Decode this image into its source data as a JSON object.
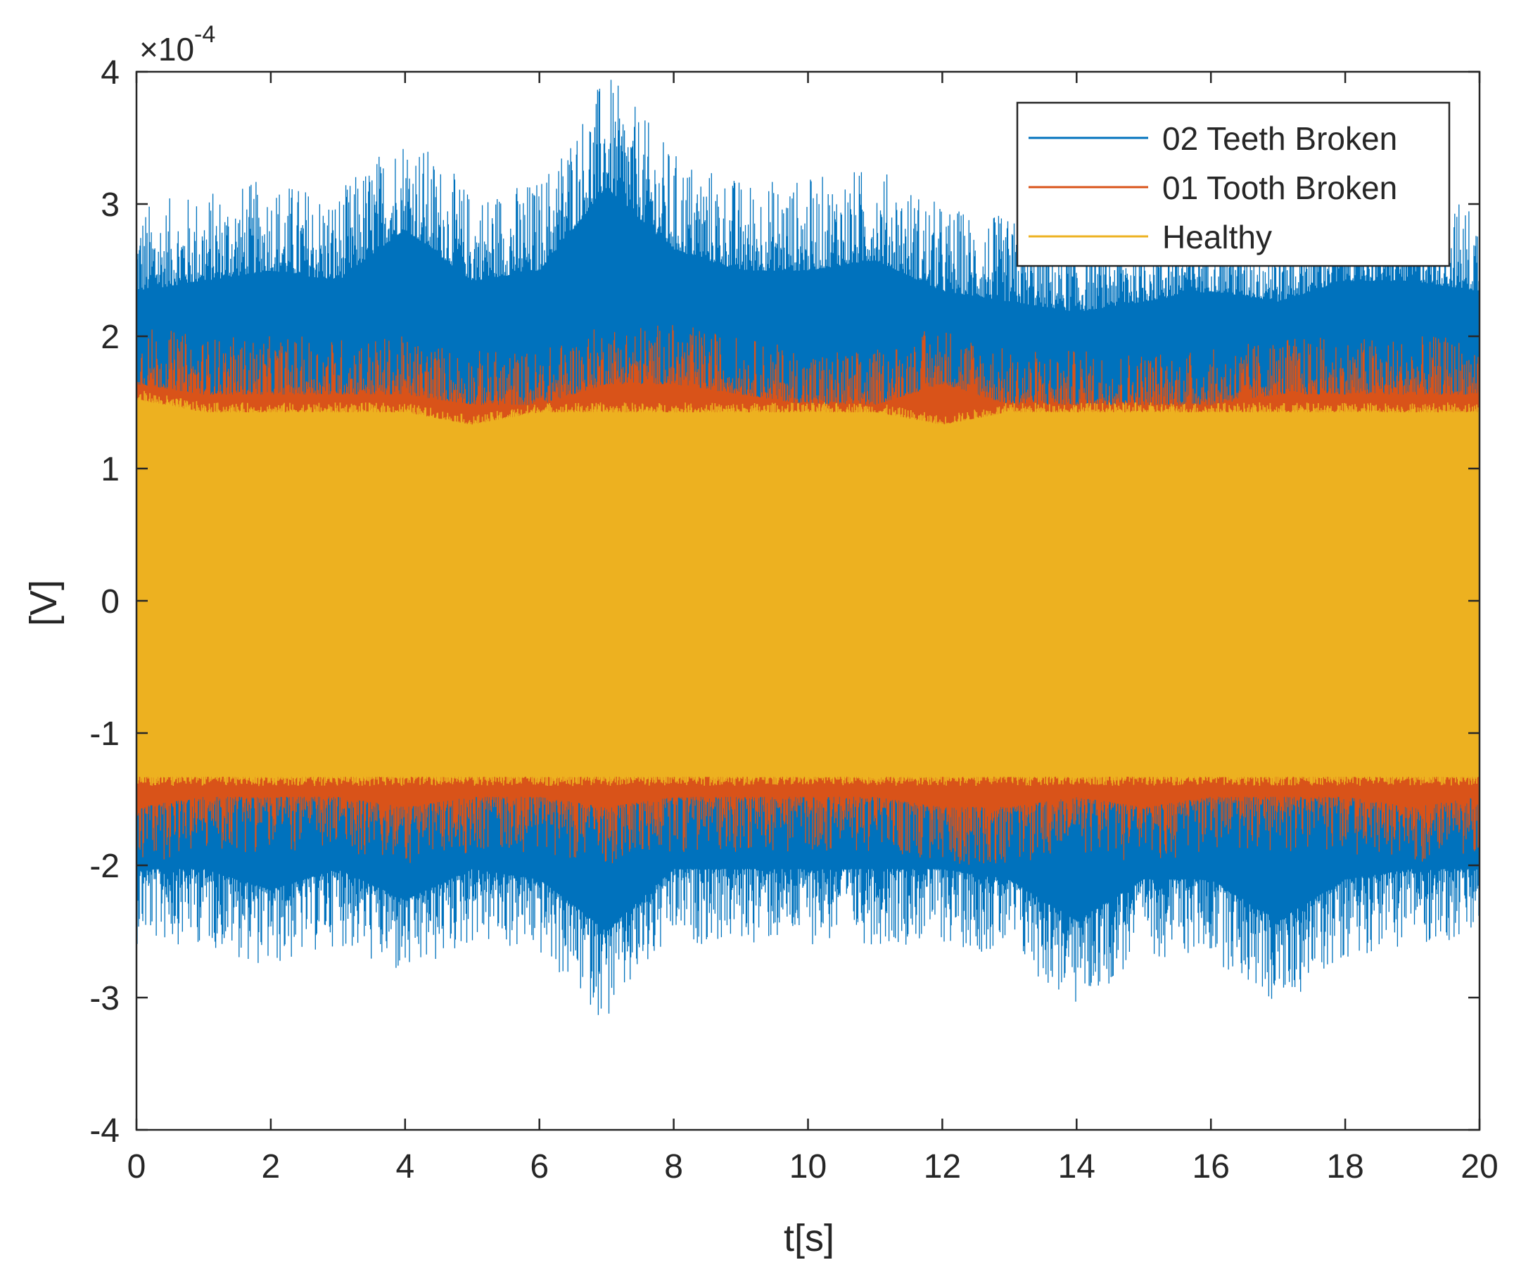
{
  "chart_data": {
    "type": "line",
    "xlabel": "t[s]",
    "ylabel": "[V]",
    "y_exponent_label": "×10",
    "y_exponent_power": "-4",
    "xlim": [
      0,
      20
    ],
    "ylim": [
      -4,
      4
    ],
    "x_ticks": [
      "0",
      "2",
      "4",
      "6",
      "8",
      "10",
      "12",
      "14",
      "16",
      "18",
      "20"
    ],
    "y_ticks": [
      "-4",
      "-3",
      "-2",
      "-1",
      "0",
      "1",
      "2",
      "3",
      "4"
    ],
    "legend_position": "top-right",
    "series": [
      {
        "name": "02 Teeth Broken",
        "color": "#0072BD",
        "x": [
          0,
          1,
          2,
          3,
          4,
          5,
          6,
          7,
          8,
          9,
          10,
          11,
          12,
          13,
          14,
          15,
          16,
          17,
          18,
          19,
          20
        ],
        "upper_envelope": [
          3.0,
          3.1,
          3.2,
          3.1,
          3.6,
          3.1,
          3.2,
          4.0,
          3.4,
          3.2,
          3.2,
          3.3,
          3.0,
          2.9,
          2.8,
          2.9,
          3.0,
          2.9,
          3.1,
          3.1,
          3.0
        ],
        "lower_envelope": [
          -2.6,
          -2.6,
          -2.8,
          -2.6,
          -2.9,
          -2.6,
          -2.7,
          -3.2,
          -2.6,
          -2.6,
          -2.6,
          -2.6,
          -2.6,
          -2.7,
          -3.1,
          -2.7,
          -2.7,
          -3.1,
          -2.7,
          -2.6,
          -2.6
        ]
      },
      {
        "name": "01 Tooth Broken",
        "color": "#D95319",
        "x": [
          0,
          1,
          2,
          3,
          4,
          5,
          6,
          7,
          8,
          9,
          10,
          11,
          12,
          13,
          14,
          15,
          16,
          17,
          18,
          19,
          20
        ],
        "upper_envelope": [
          2.1,
          2.0,
          2.0,
          2.0,
          2.0,
          1.9,
          1.9,
          2.1,
          2.1,
          2.0,
          1.9,
          1.9,
          2.1,
          1.9,
          1.9,
          1.9,
          1.9,
          2.0,
          2.0,
          2.0,
          2.0
        ],
        "lower_envelope": [
          -2.0,
          -1.9,
          -1.9,
          -1.9,
          -2.0,
          -1.9,
          -1.9,
          -2.0,
          -1.9,
          -1.9,
          -1.9,
          -1.9,
          -2.0,
          -2.0,
          -1.9,
          -2.0,
          -1.9,
          -1.9,
          -1.9,
          -2.0,
          -1.9
        ]
      },
      {
        "name": "Healthy",
        "color": "#EDB120",
        "x": [
          0,
          1,
          2,
          3,
          4,
          5,
          6,
          7,
          8,
          9,
          10,
          11,
          12,
          13,
          14,
          15,
          16,
          17,
          18,
          19,
          20
        ],
        "upper_envelope": [
          1.6,
          1.5,
          1.5,
          1.5,
          1.5,
          1.4,
          1.5,
          1.5,
          1.5,
          1.5,
          1.5,
          1.5,
          1.4,
          1.5,
          1.5,
          1.5,
          1.5,
          1.5,
          1.5,
          1.5,
          1.5
        ],
        "lower_envelope": [
          -1.4,
          -1.4,
          -1.4,
          -1.4,
          -1.4,
          -1.4,
          -1.4,
          -1.4,
          -1.4,
          -1.4,
          -1.4,
          -1.4,
          -1.4,
          -1.4,
          -1.4,
          -1.4,
          -1.4,
          -1.4,
          -1.4,
          -1.4,
          -1.4
        ]
      }
    ]
  }
}
